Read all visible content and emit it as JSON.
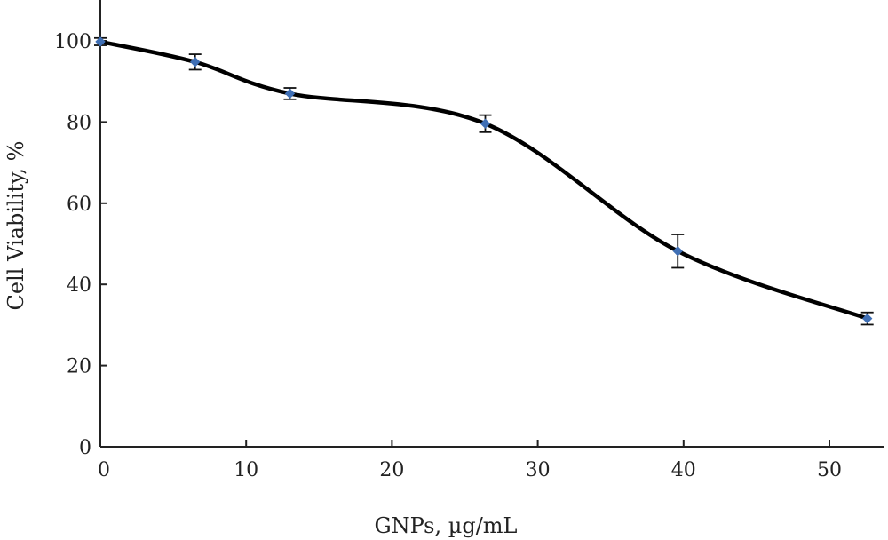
{
  "chart_data": {
    "type": "line",
    "title": "",
    "xlabel": "GNPs, µg/mL",
    "ylabel": "Cell Viability, %",
    "xlim": [
      0,
      53
    ],
    "ylim": [
      0,
      110
    ],
    "x_ticks": [
      0,
      10,
      20,
      30,
      40,
      50
    ],
    "y_ticks": [
      0,
      20,
      40,
      60,
      80,
      100
    ],
    "grid": false,
    "series": [
      {
        "color": "#3f6fb5",
        "line_color": "#000000",
        "x": [
          0,
          6.5,
          13,
          26.4,
          39.6,
          52.6
        ],
        "y": [
          99.8,
          94.8,
          87,
          79.6,
          48.2,
          31.6
        ],
        "error": [
          0.9,
          1.9,
          1.4,
          2.1,
          4.1,
          1.5
        ]
      }
    ]
  }
}
